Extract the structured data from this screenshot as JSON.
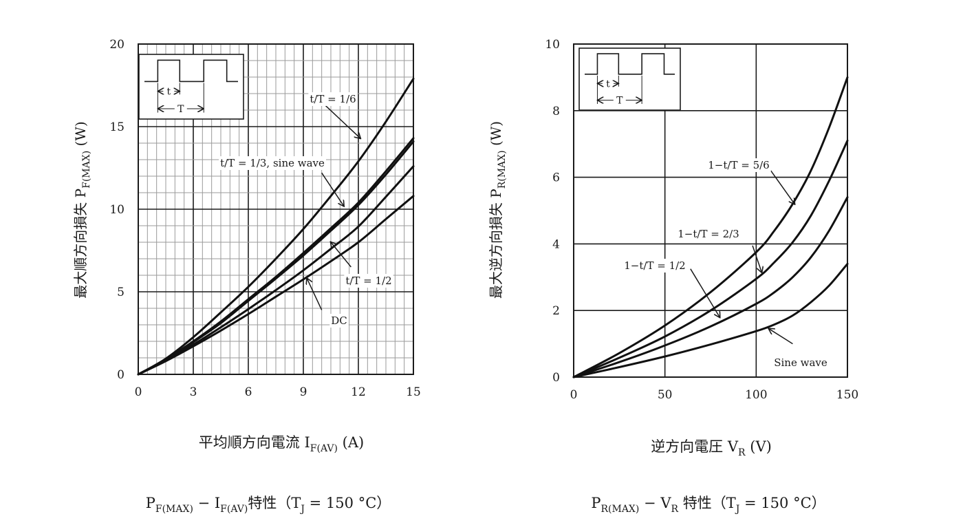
{
  "chart_data": [
    {
      "type": "line",
      "caption": {
        "p": "P",
        "p_sub": "F(MAX)",
        "dash": " − I",
        "i_sub": "F(AV)",
        "rest": "特性（T",
        "tj_sub": "J",
        "tail": " = 150 °C）"
      },
      "xlabel": {
        "main": "平均順方向電流 I",
        "sub": "F(AV)",
        "unit": " (A)"
      },
      "ylabel": {
        "main": "最大順方向損失  P",
        "sub": "F(MAX)",
        "unit": "  (W)"
      },
      "xlim": [
        0,
        15
      ],
      "ylim": [
        0,
        20
      ],
      "xticks": [
        "0",
        "3",
        "6",
        "9",
        "12",
        "15"
      ],
      "yticks": [
        "0",
        "5",
        "10",
        "15",
        "20"
      ],
      "grid": "fine",
      "inset": {
        "t_label": "t",
        "T_label": "T"
      },
      "series": [
        {
          "name": "t/T = 1/6",
          "x": [
            0,
            1.5,
            3,
            4.5,
            6,
            7.5,
            9,
            10.5,
            12,
            13.5,
            15
          ],
          "y": [
            0,
            0.95,
            2.25,
            3.75,
            5.3,
            7.0,
            8.8,
            10.8,
            12.9,
            15.3,
            17.9
          ]
        },
        {
          "name": "t/T = 1/3, sine wave",
          "x": [
            0,
            1.5,
            3,
            4.5,
            6,
            7.5,
            9,
            10.5,
            12,
            13.5,
            15
          ],
          "y": [
            0,
            0.9,
            2.0,
            3.2,
            4.55,
            5.9,
            7.35,
            8.85,
            10.4,
            12.3,
            14.3
          ]
        },
        {
          "name": "t/T = 1/3, sine wave",
          "x": [
            0,
            1.5,
            3,
            4.5,
            6,
            7.5,
            9,
            10.5,
            12,
            13.5,
            15
          ],
          "y": [
            0,
            0.88,
            1.95,
            3.1,
            4.45,
            5.8,
            7.2,
            8.7,
            10.25,
            12.1,
            14.1
          ]
        },
        {
          "name": "t/T = 1/2",
          "x": [
            0,
            1.5,
            3,
            4.5,
            6,
            7.5,
            9,
            10.5,
            12,
            13.5,
            15
          ],
          "y": [
            0,
            0.83,
            1.8,
            2.85,
            3.95,
            5.1,
            6.3,
            7.6,
            8.95,
            10.75,
            12.6
          ]
        },
        {
          "name": "DC",
          "x": [
            0,
            1.5,
            3,
            4.5,
            6,
            7.5,
            9,
            10.5,
            12,
            13.5,
            15
          ],
          "y": [
            0,
            0.8,
            1.7,
            2.65,
            3.65,
            4.7,
            5.75,
            6.85,
            8.0,
            9.4,
            10.8
          ]
        }
      ],
      "annotations": [
        {
          "text": "t/T = 1/6",
          "from": [
            9.8,
            16.7
          ],
          "to": [
            12.1,
            14.3
          ]
        },
        {
          "text": "t/T = 1/3, sine wave",
          "from": [
            10.0,
            12.2
          ],
          "to": [
            11.2,
            10.2
          ]
        },
        {
          "text": "t/T = 1/2",
          "from": [
            11.6,
            6.5
          ],
          "to": [
            10.5,
            8.0
          ]
        },
        {
          "text": "DC",
          "from": [
            10.0,
            3.9
          ],
          "to": [
            9.2,
            5.8
          ]
        }
      ]
    },
    {
      "type": "line",
      "caption": {
        "p": "P",
        "p_sub": "R(MAX)",
        "dash": " − V",
        "i_sub": "R",
        "rest": " 特性（T",
        "tj_sub": "J",
        "tail": " = 150 °C）"
      },
      "xlabel": {
        "main": "逆方向電圧  V",
        "sub": "R",
        "unit": " (V)"
      },
      "ylabel": {
        "main": "最大逆方向損失 P",
        "sub": "R(MAX)",
        "unit": " (W)"
      },
      "xlim": [
        0,
        150
      ],
      "ylim": [
        0,
        10
      ],
      "xticks": [
        "0",
        "50",
        "100",
        "150"
      ],
      "yticks": [
        "0",
        "2",
        "4",
        "6",
        "8",
        "10"
      ],
      "grid": "coarse",
      "inset": {
        "t_label": "t",
        "T_label": "T"
      },
      "series": [
        {
          "name": "1−t/T = 5/6",
          "x": [
            0,
            25,
            50,
            75,
            100,
            110,
            120,
            130,
            140,
            150
          ],
          "y": [
            0,
            0.72,
            1.55,
            2.55,
            3.75,
            4.4,
            5.2,
            6.2,
            7.5,
            9.0
          ]
        },
        {
          "name": "1−t/T = 2/3",
          "x": [
            0,
            25,
            50,
            75,
            100,
            110,
            120,
            130,
            140,
            150
          ],
          "y": [
            0,
            0.58,
            1.22,
            2.0,
            2.95,
            3.45,
            4.05,
            4.85,
            5.9,
            7.1
          ]
        },
        {
          "name": "1−t/T = 1/2",
          "x": [
            0,
            25,
            50,
            75,
            100,
            110,
            120,
            130,
            140,
            150
          ],
          "y": [
            0,
            0.45,
            0.95,
            1.52,
            2.2,
            2.55,
            3.0,
            3.6,
            4.4,
            5.4
          ]
        },
        {
          "name": "Sine wave",
          "x": [
            0,
            25,
            50,
            75,
            100,
            110,
            120,
            130,
            140,
            150
          ],
          "y": [
            0,
            0.3,
            0.62,
            0.98,
            1.38,
            1.58,
            1.85,
            2.25,
            2.75,
            3.4
          ]
        }
      ],
      "annotations": [
        {
          "text": "1−t/T = 5/6",
          "from": [
            108,
            6.2
          ],
          "to": [
            121,
            5.2
          ]
        },
        {
          "text": "1−t/T = 2/3",
          "from": [
            98,
            3.95
          ],
          "to": [
            103,
            3.15
          ]
        },
        {
          "text": "1−t/T = 1/2",
          "from": [
            64,
            3.25
          ],
          "to": [
            80,
            1.8
          ]
        },
        {
          "text": "Sine wave",
          "from": [
            120,
            1.0
          ],
          "to": [
            107,
            1.45
          ]
        }
      ]
    }
  ]
}
